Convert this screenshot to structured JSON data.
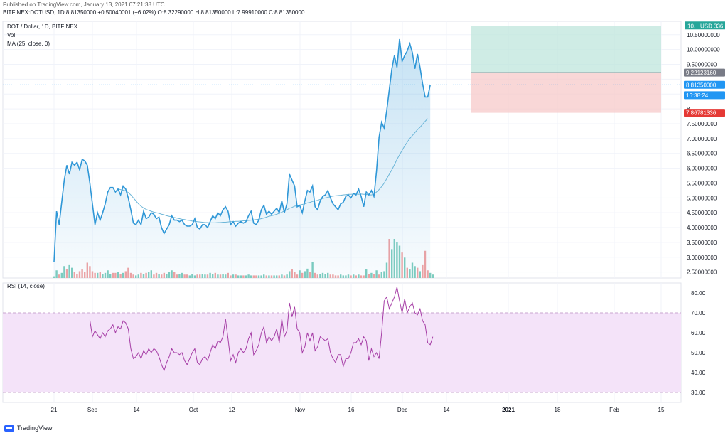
{
  "header": {
    "published": "Published on TradingView.com, January 13, 2021 07:21:38 UTC",
    "symbol": "BITFINEX:DOTUSD, 1D",
    "o": "O:8.32290000",
    "h": "H:8.81350000",
    "l": "L:7.99910000",
    "c": "C:8.81350000",
    "last": "8.81350000",
    "change": "+0.50040001 (+6.02%)"
  },
  "panes": {
    "title": "DOT / Dollar, 1D, BITFINEX",
    "vol": "Vol",
    "ma": "MA (25, close, 0)",
    "rsi": "RSI (14, close)"
  },
  "footer": {
    "brand": "TradingView"
  },
  "colors": {
    "price_line": "#2f97d7",
    "ma_line": "#6db6d8",
    "vol_up": "#7ecdbf",
    "vol_down": "#f1a3a3",
    "rsi_line": "#a63ea6",
    "rsi_band": "#f4e3f9",
    "tp_zone": "#bfe6dc",
    "sl_zone": "#f7c9c9",
    "current_tag": "#2196f3",
    "stop_tag": "#e53935",
    "entry_tag": "#787b86",
    "tp_tag": "#26a69a"
  },
  "chart_data": [
    {
      "type": "line",
      "series": [
        {
          "name": "DOT / Dollar",
          "values": [
            2.85,
            4.55,
            4.1,
            4.85,
            5.6,
            6.1,
            5.8,
            6.2,
            6.1,
            6.2,
            5.95,
            6.3,
            6.25,
            6.1,
            5.5,
            4.8,
            4.1,
            4.5,
            4.25,
            4.5,
            4.8,
            5.2,
            5.35,
            5.35,
            5.2,
            5.3,
            5.1,
            5.4,
            5.3,
            5.0,
            4.6,
            4.15,
            4.1,
            4.25,
            4.1,
            4.55,
            4.3,
            4.35,
            4.5,
            4.45,
            4.3,
            4.35,
            4.0,
            3.8,
            3.95,
            4.1,
            4.4,
            4.25,
            4.25,
            4.2,
            4.25,
            4.1,
            4.05,
            4.05,
            4.1,
            4.3,
            4.0,
            3.95,
            4.1,
            4.1,
            4.0,
            4.2,
            4.4,
            4.3,
            4.5,
            4.4,
            4.6,
            4.7,
            4.55,
            4.1,
            4.2,
            4.05,
            4.15,
            4.2,
            4.15,
            4.2,
            4.4,
            4.55,
            4.15,
            4.1,
            4.25,
            4.6,
            4.75,
            4.45,
            4.55,
            4.45,
            4.55,
            4.65,
            4.5,
            4.9,
            4.5,
            4.8,
            5.8,
            5.6,
            5.4,
            4.7,
            4.75,
            4.5,
            4.9,
            5.25,
            5.2,
            5.4,
            4.7,
            4.6,
            4.9,
            5.05,
            5.1,
            5.25,
            5.0,
            4.8,
            4.7,
            4.6,
            4.8,
            4.85,
            5.05,
            5.1,
            5.0,
            5.15,
            5.1,
            5.3,
            5.05,
            4.7,
            5.2,
            5.1,
            5.25,
            5.05,
            5.9,
            7.05,
            7.55,
            7.35,
            7.95,
            8.65,
            9.35,
            9.8,
            9.4,
            10.35,
            9.6,
            9.8,
            9.95,
            10.2,
            9.9,
            9.35,
            9.85,
            9.4,
            8.85,
            8.4,
            8.4,
            8.81
          ]
        },
        {
          "name": "MA (25, close, 0)",
          "values": [
            null,
            null,
            null,
            null,
            null,
            null,
            null,
            null,
            null,
            null,
            null,
            null,
            null,
            null,
            null,
            null,
            null,
            null,
            null,
            null,
            null,
            null,
            null,
            null,
            null,
            5.3,
            5.28,
            5.26,
            5.24,
            5.18,
            5.1,
            5.0,
            4.9,
            4.8,
            4.72,
            4.66,
            4.61,
            4.58,
            4.55,
            4.52,
            4.5,
            4.48,
            4.45,
            4.43,
            4.4,
            4.38,
            4.36,
            4.34,
            4.32,
            4.3,
            4.28,
            4.27,
            4.25,
            4.24,
            4.22,
            4.21,
            4.2,
            4.19,
            4.18,
            4.17,
            4.17,
            4.16,
            4.16,
            4.16,
            4.17,
            4.17,
            4.18,
            4.18,
            4.19,
            4.2,
            4.2,
            4.21,
            4.21,
            4.22,
            4.23,
            4.23,
            4.24,
            4.25,
            4.26,
            4.27,
            4.28,
            4.3,
            4.32,
            4.35,
            4.38,
            4.4,
            4.42,
            4.45,
            4.48,
            4.52,
            4.56,
            4.6,
            4.65,
            4.68,
            4.72,
            4.74,
            4.76,
            4.78,
            4.8,
            4.83,
            4.85,
            4.88,
            4.9,
            4.92,
            4.95,
            4.98,
            5.0,
            5.02,
            5.04,
            5.06,
            5.07,
            5.08,
            5.09,
            5.1,
            5.11,
            5.12,
            5.12,
            5.13,
            5.13,
            5.12,
            5.13,
            5.12,
            5.12,
            5.1,
            5.1,
            5.12,
            5.2,
            5.28,
            5.38,
            5.5,
            5.65,
            5.8,
            5.95,
            6.12,
            6.3,
            6.45,
            6.6,
            6.75,
            6.88,
            7.0,
            7.1,
            7.2,
            7.3,
            7.38,
            7.48,
            7.58,
            7.67
          ]
        }
      ],
      "x_ticks": [
        "21",
        "Sep",
        "14",
        "Oct",
        "12",
        "Nov",
        "16",
        "Dec",
        "14",
        "2021",
        "18",
        "Feb",
        "15"
      ],
      "y_ticks": [
        "2.50000000",
        "3.00000000",
        "3.50000000",
        "4.00000000",
        "4.50000000",
        "5.00000000",
        "5.50000000",
        "6.00000000",
        "6.50000000",
        "7.00000000",
        "7.50000000",
        "8.",
        "9.50000000",
        "10.00000000",
        "10.50000000"
      ],
      "ylim": [
        2.3,
        10.95
      ],
      "grid": true,
      "position_tool": {
        "target": 10.8,
        "entry": 9.2212316,
        "stop": 7.86781336
      },
      "price_tags": [
        {
          "label": "9.22123160",
          "kind": "entry"
        },
        {
          "label": "8.81350000",
          "kind": "current"
        },
        {
          "label": "16:38:24",
          "kind": "current"
        },
        {
          "label": "7.86781336",
          "kind": "stop"
        },
        {
          "label": "10.",
          "kind": "target"
        },
        {
          "label": "USD",
          "kind": "target"
        },
        {
          "label": "336",
          "kind": "target"
        }
      ]
    },
    {
      "type": "bar",
      "name": "Vol",
      "values": [
        0.1,
        0.45,
        0.2,
        0.3,
        0.7,
        0.5,
        0.8,
        0.6,
        0.35,
        0.25,
        0.4,
        0.5,
        0.35,
        0.9,
        0.7,
        0.4,
        0.3,
        0.3,
        0.35,
        0.25,
        0.3,
        0.45,
        0.25,
        0.3,
        0.3,
        0.35,
        0.25,
        0.3,
        0.4,
        0.6,
        0.3,
        0.2,
        0.15,
        0.2,
        0.3,
        0.25,
        0.3,
        0.35,
        0.45,
        0.2,
        0.3,
        0.25,
        0.2,
        0.3,
        0.25,
        0.35,
        0.45,
        0.35,
        0.2,
        0.25,
        0.3,
        0.2,
        0.2,
        0.15,
        0.25,
        0.15,
        0.2,
        0.2,
        0.25,
        0.2,
        0.2,
        0.3,
        0.25,
        0.3,
        0.2,
        0.2,
        0.25,
        0.2,
        0.3,
        0.15,
        0.2,
        0.2,
        0.15,
        0.15,
        0.15,
        0.15,
        0.2,
        0.15,
        0.15,
        0.15,
        0.15,
        0.15,
        0.2,
        0.15,
        0.15,
        0.15,
        0.15,
        0.15,
        0.15,
        0.2,
        0.15,
        0.2,
        0.4,
        0.5,
        0.35,
        0.2,
        0.45,
        0.3,
        0.4,
        0.55,
        0.35,
        0.95,
        0.3,
        0.2,
        0.25,
        0.3,
        0.25,
        0.3,
        0.2,
        0.2,
        0.15,
        0.15,
        0.2,
        0.15,
        0.15,
        0.2,
        0.15,
        0.2,
        0.15,
        0.2,
        0.15,
        0.15,
        0.5,
        0.25,
        0.3,
        0.25,
        0.45,
        0.2,
        0.35,
        0.4,
        0.9,
        2.3,
        1.7,
        2.3,
        2.1,
        1.9,
        1.5,
        1.2,
        0.6,
        0.5,
        0.9,
        0.7,
        0.6,
        0.4,
        0.8,
        1.6,
        0.45,
        0.3,
        0.2
      ],
      "up": [
        1,
        1,
        0,
        1,
        1,
        0,
        1,
        1,
        0,
        0,
        0,
        0,
        0,
        0,
        0,
        0,
        0,
        1,
        0,
        1,
        1,
        1,
        1,
        0,
        0,
        1,
        0,
        1,
        0,
        0,
        0,
        0,
        1,
        1,
        0,
        1,
        0,
        1,
        1,
        0,
        0,
        1,
        0,
        0,
        1,
        1,
        1,
        0,
        0,
        1,
        1,
        0,
        0,
        1,
        1,
        1,
        0,
        0,
        1,
        1,
        0,
        1,
        1,
        0,
        1,
        0,
        1,
        1,
        0,
        0,
        1,
        0,
        1,
        1,
        0,
        1,
        1,
        1,
        0,
        0,
        1,
        1,
        1,
        0,
        1,
        0,
        1,
        1,
        0,
        1,
        0,
        1,
        1,
        0,
        0,
        0,
        1,
        0,
        1,
        1,
        0,
        1,
        0,
        0,
        1,
        1,
        1,
        1,
        0,
        0,
        0,
        0,
        1,
        1,
        1,
        1,
        0,
        1,
        0,
        1,
        0,
        0,
        1,
        0,
        1,
        0,
        1,
        0,
        1,
        1,
        1,
        0,
        1,
        1,
        1,
        1,
        0,
        1,
        0,
        1,
        1,
        1,
        0,
        1,
        0,
        0,
        0,
        1,
        1
      ]
    },
    {
      "type": "line",
      "name": "RSI (14, close)",
      "values": [
        null,
        null,
        null,
        null,
        null,
        null,
        null,
        null,
        null,
        null,
        null,
        null,
        null,
        null,
        66.5,
        58,
        61,
        59,
        57,
        60,
        58,
        61,
        62,
        64,
        60,
        63,
        62,
        66,
        65,
        62,
        52,
        47,
        48,
        50,
        47,
        51,
        49,
        52,
        50,
        52,
        51,
        48,
        44,
        41,
        45,
        48,
        52,
        50,
        50,
        49,
        50,
        46,
        44,
        47,
        50,
        52,
        45,
        44,
        47,
        48,
        46,
        50,
        54,
        52,
        56,
        55,
        58,
        67,
        57,
        46,
        49,
        45,
        50,
        52,
        50,
        52,
        57,
        60,
        49,
        51,
        54,
        60,
        63,
        55,
        58,
        56,
        58,
        62,
        55,
        67,
        58,
        61,
        75,
        68,
        73,
        62,
        60,
        50,
        53,
        60,
        56,
        60,
        51,
        53,
        58,
        57,
        56,
        57,
        50,
        47,
        45,
        49,
        49,
        43,
        47,
        47,
        50,
        55,
        55,
        57,
        54,
        58,
        56,
        46,
        52,
        48,
        50,
        47,
        60,
        76,
        78,
        72,
        75,
        78,
        83,
        76,
        70,
        77,
        70,
        73,
        75,
        70,
        69,
        72,
        66,
        64,
        55,
        54,
        58
      ],
      "ylim": [
        25,
        85
      ],
      "y_ticks": [
        "30.00",
        "40.00",
        "50.00",
        "60.00",
        "70.00",
        "80.00"
      ],
      "band": [
        30,
        70
      ],
      "x_ticks": [
        "21",
        "Sep",
        "14",
        "Oct",
        "12",
        "Nov",
        "16",
        "Dec",
        "14",
        "2021",
        "18",
        "Feb",
        "15"
      ]
    }
  ]
}
